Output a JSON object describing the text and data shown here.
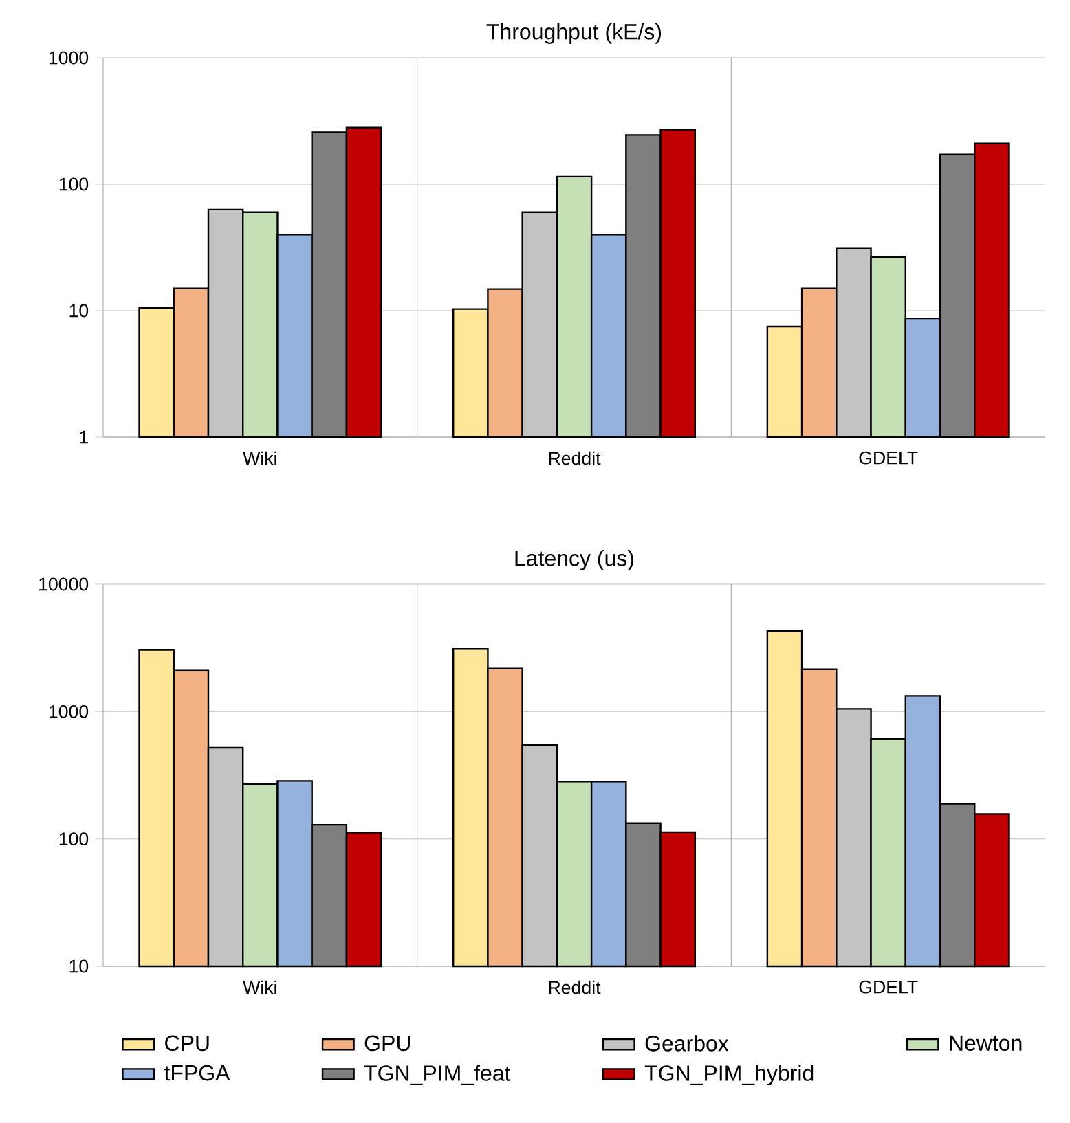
{
  "chart_data": [
    {
      "type": "bar",
      "title": "Throughput (kE/s)",
      "categories": [
        "Wiki",
        "Reddit",
        "GDELT"
      ],
      "log": true,
      "ylim": [
        1,
        1000
      ],
      "yticks": [
        1,
        10,
        100,
        1000
      ],
      "grid": true,
      "series": [
        {
          "color": "#ffe699",
          "values": [
            10.5,
            10.3,
            7.5
          ]
        },
        {
          "color": "#f4b183",
          "values": [
            15,
            14.8,
            15
          ]
        },
        {
          "color": "#c3c3c3",
          "values": [
            63,
            60,
            31
          ]
        },
        {
          "color": "#c5e0b4",
          "values": [
            60,
            115,
            26.5
          ]
        },
        {
          "color": "#95b1dd",
          "values": [
            40,
            40,
            8.7
          ]
        },
        {
          "color": "#7f7f7f",
          "values": [
            257,
            245,
            172
          ]
        },
        {
          "color": "#c00000",
          "values": [
            280,
            270,
            210
          ]
        }
      ]
    },
    {
      "type": "bar",
      "title": "Latency (us)",
      "categories": [
        "Wiki",
        "Reddit",
        "GDELT"
      ],
      "log": true,
      "ylim": [
        10,
        10000
      ],
      "yticks": [
        10,
        100,
        1000,
        10000
      ],
      "grid": true,
      "legend": "bottom",
      "series": [
        {
          "name": "CPU",
          "color": "#ffe699",
          "values": [
            3050,
            3100,
            4300
          ]
        },
        {
          "name": "GPU",
          "color": "#f4b183",
          "values": [
            2100,
            2180,
            2150
          ]
        },
        {
          "name": "Gearbox",
          "color": "#c3c3c3",
          "values": [
            520,
            545,
            1050
          ]
        },
        {
          "name": "Newton",
          "color": "#c5e0b4",
          "values": [
            270,
            282,
            610
          ]
        },
        {
          "name": "tFPGA",
          "color": "#95b1dd",
          "values": [
            285,
            282,
            1330
          ]
        },
        {
          "name": "TGN_PIM_feat",
          "color": "#7f7f7f",
          "values": [
            129,
            133,
            189
          ]
        },
        {
          "name": "TGN_PIM_hybrid",
          "color": "#c00000",
          "values": [
            112,
            113,
            157
          ]
        }
      ]
    }
  ]
}
